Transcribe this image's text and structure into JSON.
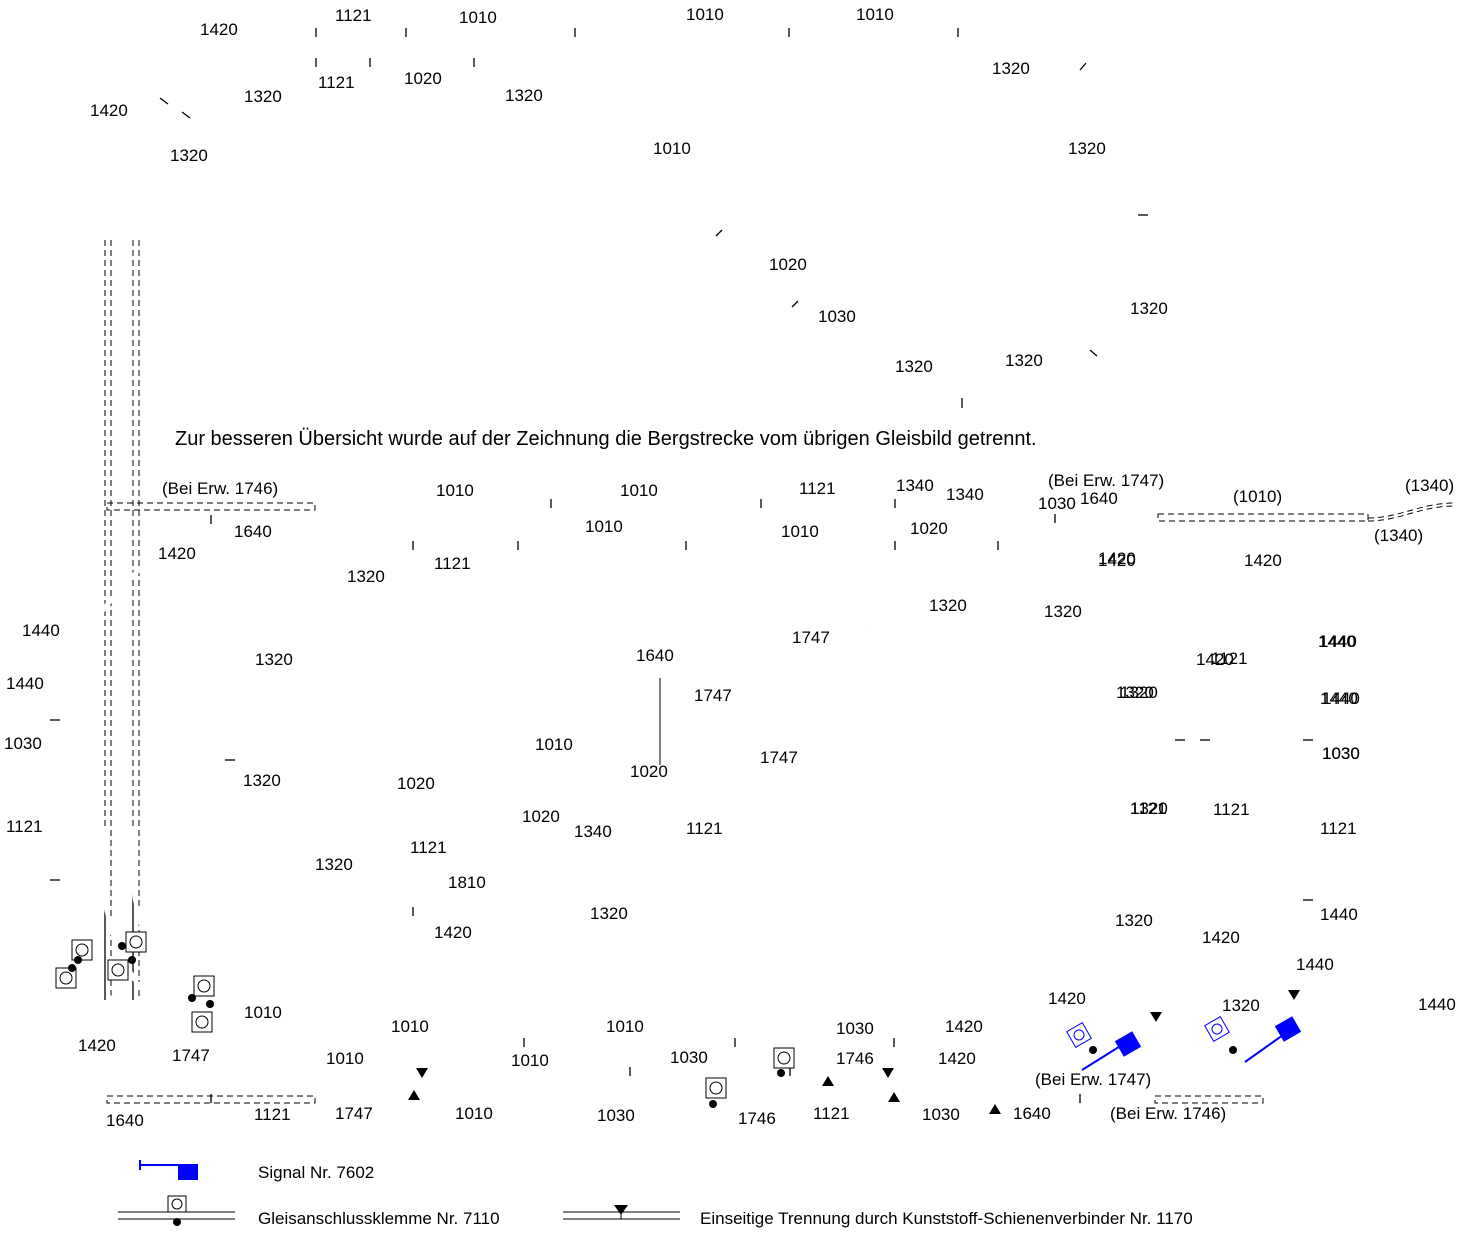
{
  "note": "Zur besseren Übersicht wurde auf der Zeichnung die Bergstrecke vom übrigen Gleisbild getrennt.",
  "colors": {
    "signal_blue": "#0000ff",
    "track": "#000000",
    "background": "#ffffff"
  },
  "mountain_labels": [
    "1420",
    "1121",
    "1010",
    "1010",
    "1010",
    "1420",
    "1121",
    "1020",
    "1320",
    "1320",
    "1320",
    "1010",
    "1320",
    "1320",
    "1020",
    "1030",
    "1320",
    "1320",
    "1320"
  ],
  "main_labels": [
    "(Bei Erw. 1746)",
    "1010",
    "1010",
    "1121",
    "1340",
    "1340",
    "(Bei Erw. 1747)",
    "1030",
    "1640",
    "(1010)",
    "(1340)",
    "(1340)",
    "1640",
    "1420",
    "1010",
    "1010",
    "1020",
    "1420",
    "1420",
    "1121",
    "1320",
    "1320",
    "1320",
    "1747",
    "1640",
    "1440",
    "1440",
    "1030",
    "1121",
    "1440",
    "1440",
    "1420",
    "1320",
    "1320",
    "1747",
    "1010",
    "1747",
    "1420",
    "1320",
    "1440",
    "1440",
    "1030",
    "1121",
    "1440",
    "1440",
    "1030",
    "1320",
    "1320",
    "1121",
    "1121",
    "1020",
    "1020",
    "1340",
    "1020",
    "1121",
    "1121",
    "1810",
    "1320",
    "1320",
    "1420",
    "1420",
    "1121",
    "1320",
    "1420",
    "1440",
    "1320",
    "1010",
    "1010",
    "1010",
    "1030",
    "1420",
    "1420",
    "1747",
    "1010",
    "1010",
    "1030",
    "1746",
    "1420",
    "(Bei Erw. 1747)",
    "1640",
    "1121",
    "1747",
    "1010",
    "1030",
    "1746",
    "1121",
    "1030",
    "1640",
    "(Bei Erw. 1746)"
  ],
  "legend": {
    "signal": "Signal Nr. 7602",
    "clamp": "Gleisanschlussklemme Nr. 7110",
    "separator": "Einseitige Trennung durch Kunststoff-Schienenverbinder Nr. 1170"
  }
}
